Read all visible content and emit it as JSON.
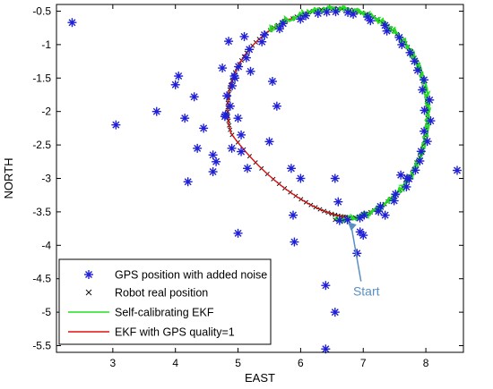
{
  "chart_data": {
    "type": "scatter",
    "xlabel": "EAST",
    "ylabel": "NORTH",
    "xlim": [
      2.1,
      8.6
    ],
    "ylim": [
      -5.6,
      -0.4
    ],
    "xticks": [
      "3",
      "4",
      "5",
      "6",
      "7",
      "8"
    ],
    "yticks": [
      "-0.5",
      "-1",
      "-1.5",
      "-2",
      "-2.5",
      "-3",
      "-3.5",
      "-4",
      "-4.5",
      "-5",
      "-5.5"
    ],
    "grid": false,
    "legend_position": "bottom-left",
    "trajectory": {
      "center": [
        6.55,
        -2.04
      ],
      "radius_x": 1.54,
      "radius_y": 1.58,
      "start": [
        6.75,
        -3.58
      ]
    },
    "series": [
      {
        "name": "GPS position with added noise",
        "marker": "*",
        "color": "#1f1fd6",
        "points": [
          [
            2.35,
            -0.67
          ],
          [
            3.05,
            -2.2
          ],
          [
            3.7,
            -2.0
          ],
          [
            4.0,
            -1.6
          ],
          [
            4.05,
            -1.47
          ],
          [
            4.3,
            -1.78
          ],
          [
            4.35,
            -2.55
          ],
          [
            4.45,
            -2.25
          ],
          [
            4.6,
            -2.65
          ],
          [
            4.65,
            -2.75
          ],
          [
            4.6,
            -2.9
          ],
          [
            4.75,
            -1.35
          ],
          [
            4.8,
            -2.05
          ],
          [
            4.85,
            -0.95
          ],
          [
            4.9,
            -2.55
          ],
          [
            5.0,
            -2.1
          ],
          [
            5.05,
            -2.35
          ],
          [
            5.05,
            -2.6
          ],
          [
            5.1,
            -0.88
          ],
          [
            5.15,
            -2.85
          ],
          [
            5.2,
            -1.4
          ],
          [
            5.5,
            -2.45
          ],
          [
            5.55,
            -1.55
          ],
          [
            5.62,
            -1.92
          ],
          [
            5.85,
            -2.85
          ],
          [
            5.88,
            -3.55
          ],
          [
            5.9,
            -3.95
          ],
          [
            6.0,
            -3.0
          ],
          [
            6.55,
            -3.0
          ],
          [
            6.6,
            -3.35
          ],
          [
            6.95,
            -3.8
          ],
          [
            7.0,
            -3.85
          ],
          [
            6.9,
            -4.12
          ],
          [
            7.35,
            -3.55
          ],
          [
            7.6,
            -2.95
          ],
          [
            7.7,
            -3.0
          ],
          [
            8.5,
            -2.88
          ],
          [
            5.0,
            -3.82
          ],
          [
            6.4,
            -4.6
          ],
          [
            6.55,
            -5.0
          ],
          [
            6.4,
            -5.55
          ],
          [
            4.2,
            -3.05
          ],
          [
            4.15,
            -2.1
          ],
          [
            4.95,
            -1.5
          ]
        ]
      },
      {
        "name": "Robot real position",
        "marker": "x",
        "color": "#111111"
      },
      {
        "name": "Self-calibrating EKF",
        "style": "line",
        "color": "#22dd22"
      },
      {
        "name": "EKF with GPS quality=1",
        "style": "line",
        "color": "#dd1111"
      }
    ],
    "annotations": [
      {
        "text": "Start",
        "x": 7.05,
        "y": -4.7,
        "arrow_to": [
          6.75,
          -3.65
        ],
        "color": "#5b8fc4"
      }
    ]
  }
}
